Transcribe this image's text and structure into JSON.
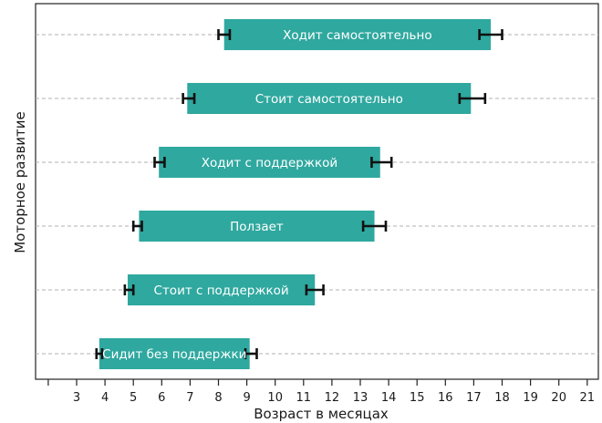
{
  "chart_data": {
    "type": "bar",
    "orientation": "horizontal-range",
    "title": "",
    "xlabel": "Возраст в месяцах",
    "ylabel": "Моторное развитие",
    "xlim": [
      2,
      21.3
    ],
    "xticks": [
      3,
      4,
      5,
      6,
      7,
      8,
      9,
      10,
      11,
      12,
      13,
      14,
      15,
      16,
      17,
      18,
      19,
      20,
      21
    ],
    "grid": "horizontal dashed",
    "colors": {
      "bar": "#2fa89f",
      "error": "#111111",
      "grid": "#b0b0b0",
      "frame": "#222222"
    },
    "categories": [
      "Ходит самостоятельно",
      "Стоит самостоятельно",
      "Ходит с поддержкой",
      "Ползает",
      "Стоит с поддержкой",
      "Сидит без поддержки"
    ],
    "ranges": [
      {
        "start": 8.2,
        "end": 17.6,
        "start_err": [
          8.0,
          8.4
        ],
        "end_err": [
          17.2,
          18.0
        ]
      },
      {
        "start": 6.9,
        "end": 16.9,
        "start_err": [
          6.75,
          7.15
        ],
        "end_err": [
          16.5,
          17.4
        ]
      },
      {
        "start": 5.9,
        "end": 13.7,
        "start_err": [
          5.75,
          6.1
        ],
        "end_err": [
          13.4,
          14.1
        ]
      },
      {
        "start": 5.2,
        "end": 13.5,
        "start_err": [
          5.0,
          5.3
        ],
        "end_err": [
          13.1,
          13.9
        ]
      },
      {
        "start": 4.8,
        "end": 11.4,
        "start_err": [
          4.7,
          5.0
        ],
        "end_err": [
          11.1,
          11.7
        ]
      },
      {
        "start": 3.8,
        "end": 9.1,
        "start_err": [
          3.7,
          3.9
        ],
        "end_err": [
          8.95,
          9.35
        ]
      }
    ]
  }
}
